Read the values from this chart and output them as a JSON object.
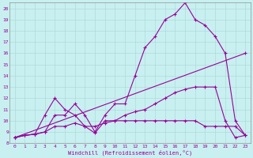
{
  "xlabel": "Windchill (Refroidissement éolien,°C)",
  "bg_color": "#c8f0f0",
  "line_color": "#990099",
  "grid_color": "#aad4d4",
  "xlim": [
    -0.5,
    23.5
  ],
  "ylim": [
    8.0,
    20.5
  ],
  "xticks": [
    0,
    1,
    2,
    3,
    4,
    5,
    6,
    7,
    8,
    9,
    10,
    11,
    12,
    13,
    14,
    15,
    16,
    17,
    18,
    19,
    20,
    21,
    22,
    23
  ],
  "yticks": [
    8,
    9,
    10,
    11,
    12,
    13,
    14,
    15,
    16,
    17,
    18,
    19,
    20
  ],
  "series": [
    {
      "x": [
        0,
        1,
        2,
        3,
        4,
        5,
        6,
        7,
        8,
        9,
        10,
        11,
        12,
        13,
        14,
        15,
        16,
        17,
        18,
        19,
        20,
        21,
        22,
        23
      ],
      "y": [
        8.5,
        8.7,
        8.8,
        9.0,
        10.5,
        10.5,
        11.5,
        10.5,
        9.0,
        10.5,
        11.5,
        11.5,
        14.0,
        16.5,
        17.5,
        19.0,
        19.5,
        20.5,
        19.0,
        18.5,
        17.5,
        16.0,
        10.0,
        8.7
      ]
    },
    {
      "x": [
        0,
        23
      ],
      "y": [
        8.5,
        16.0
      ]
    },
    {
      "x": [
        0,
        1,
        2,
        3,
        4,
        5,
        6,
        7,
        8,
        9,
        10,
        11,
        12,
        13,
        14,
        15,
        16,
        17,
        18,
        19,
        20,
        21,
        22,
        23
      ],
      "y": [
        8.5,
        8.7,
        8.8,
        9.0,
        9.5,
        9.5,
        9.8,
        9.5,
        9.5,
        9.8,
        10.0,
        10.5,
        10.8,
        11.0,
        11.5,
        12.0,
        12.5,
        12.8,
        13.0,
        13.0,
        13.0,
        10.0,
        8.5,
        8.7
      ]
    },
    {
      "x": [
        0,
        1,
        2,
        3,
        4,
        5,
        6,
        7,
        8,
        9,
        10,
        11,
        12,
        13,
        14,
        15,
        16,
        17,
        18,
        19,
        20,
        21,
        22,
        23
      ],
      "y": [
        8.5,
        8.7,
        8.8,
        10.5,
        12.0,
        11.0,
        10.5,
        9.5,
        8.9,
        10.0,
        10.0,
        10.0,
        10.0,
        10.0,
        10.0,
        10.0,
        10.0,
        10.0,
        10.0,
        9.5,
        9.5,
        9.5,
        9.5,
        8.7
      ]
    }
  ]
}
